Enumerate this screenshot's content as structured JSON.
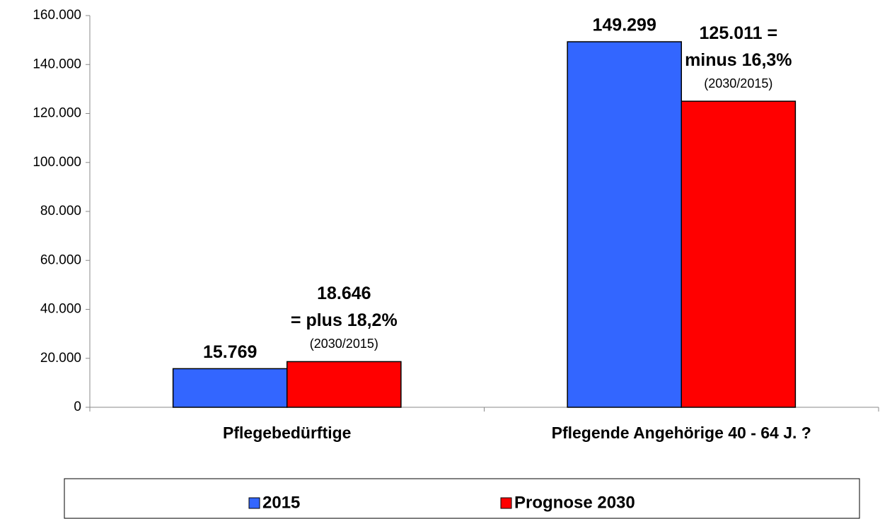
{
  "chart_data": {
    "type": "bar",
    "categories": [
      "Pflegebedürftige",
      "Pflegende Angehörige 40 - 64 J. ?"
    ],
    "series": [
      {
        "name": "2015",
        "color": "#3366ff",
        "values": [
          15769,
          149299
        ],
        "value_labels": [
          "15.769",
          "149.299"
        ]
      },
      {
        "name": "Prognose 2030",
        "color": "#ff0000",
        "values": [
          18646,
          125011
        ],
        "value_labels": [
          "18.646",
          "125.011 ="
        ]
      }
    ],
    "annotations": [
      [
        "= plus 18,2%",
        "(2030/2015)"
      ],
      [
        "minus 16,3%",
        "(2030/2015)"
      ]
    ],
    "ylim": [
      0,
      160000
    ],
    "yticks": [
      0,
      {
        "value": 20000,
        "label": "20.000"
      },
      {
        "value": 40000,
        "label": "40.000"
      },
      {
        "value": 60000,
        "label": "60.000"
      },
      {
        "value": 80000,
        "label": "80.000"
      },
      {
        "value": 100000,
        "label": "100.000"
      },
      {
        "value": 120000,
        "label": "120.000"
      },
      {
        "value": 140000,
        "label": "140.000"
      },
      {
        "value": 160000,
        "label": "160.000"
      }
    ],
    "grid": false,
    "legend": "bottom"
  }
}
